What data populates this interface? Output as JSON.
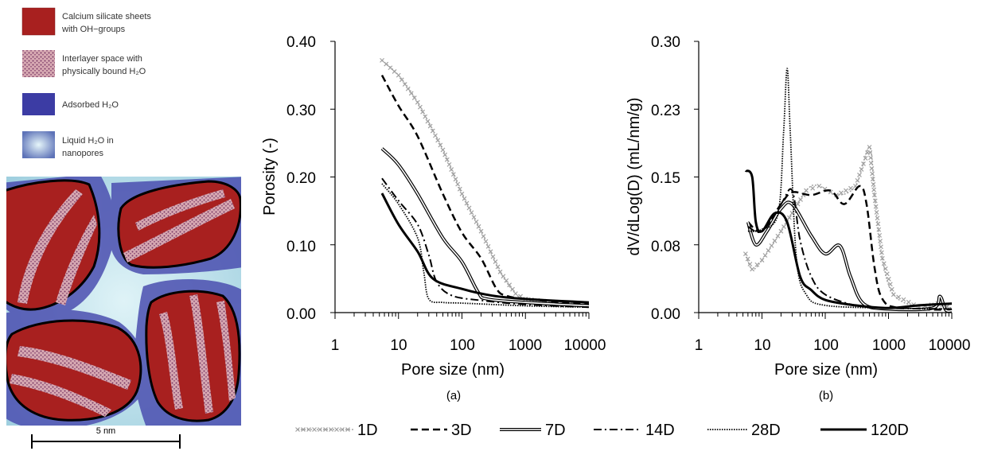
{
  "schematic": {
    "legend": [
      {
        "line1": "Calcium silicate sheets",
        "line2": "with OH−groups",
        "swatch": "sheet"
      },
      {
        "line1": "Interlayer space with",
        "line2": "physically bound H₂O",
        "swatch": "interlayer"
      },
      {
        "line1": "Adsorbed H₂O",
        "line2": "",
        "swatch": "adsorbed"
      },
      {
        "line1": "Liquid H₂O in",
        "line2": "nanopores",
        "swatch": "liquid"
      }
    ],
    "scale_label": "5 nm",
    "colors": {
      "sheet": "#a8201f",
      "interlayer": "#c9909a",
      "adsorbed": "#3c3ca4",
      "liquid": "#bfe4ee"
    }
  },
  "chart_data": [
    {
      "type": "line",
      "panel": "(a)",
      "xlabel": "Pore size (nm)",
      "ylabel": "Porosity (-)",
      "xscale": "log",
      "xlim": [
        1,
        10000
      ],
      "ylim": [
        0,
        0.4
      ],
      "x_ticks": [
        "1",
        "10",
        "100",
        "1000",
        "10000"
      ],
      "y_ticks": [
        "0.00",
        "0.10",
        "0.20",
        "0.30",
        "0.40"
      ],
      "series": [
        {
          "name": "1D",
          "values": [
            [
              5.5,
              0.372
            ],
            [
              10,
              0.35
            ],
            [
              20,
              0.31
            ],
            [
              50,
              0.24
            ],
            [
              100,
              0.175
            ],
            [
              200,
              0.12
            ],
            [
              400,
              0.06
            ],
            [
              700,
              0.028
            ],
            [
              1000,
              0.02
            ],
            [
              3000,
              0.015
            ],
            [
              10000,
              0.012
            ]
          ]
        },
        {
          "name": "3D",
          "values": [
            [
              5.5,
              0.35
            ],
            [
              10,
              0.305
            ],
            [
              20,
              0.26
            ],
            [
              50,
              0.175
            ],
            [
              100,
              0.118
            ],
            [
              200,
              0.08
            ],
            [
              350,
              0.035
            ],
            [
              500,
              0.025
            ],
            [
              1000,
              0.02
            ],
            [
              10000,
              0.012
            ]
          ]
        },
        {
          "name": "7D",
          "values": [
            [
              5.5,
              0.242
            ],
            [
              10,
              0.218
            ],
            [
              20,
              0.175
            ],
            [
              50,
              0.11
            ],
            [
              100,
              0.075
            ],
            [
              180,
              0.03
            ],
            [
              250,
              0.02
            ],
            [
              1000,
              0.015
            ],
            [
              10000,
              0.01
            ]
          ]
        },
        {
          "name": "14D",
          "values": [
            [
              5.5,
              0.198
            ],
            [
              10,
              0.165
            ],
            [
              20,
              0.13
            ],
            [
              30,
              0.085
            ],
            [
              40,
              0.045
            ],
            [
              70,
              0.025
            ],
            [
              200,
              0.018
            ],
            [
              1000,
              0.012
            ],
            [
              10000,
              0.008
            ]
          ]
        },
        {
          "name": "28D",
          "values": [
            [
              5.5,
              0.19
            ],
            [
              10,
              0.16
            ],
            [
              20,
              0.11
            ],
            [
              25,
              0.06
            ],
            [
              30,
              0.02
            ],
            [
              50,
              0.015
            ],
            [
              100,
              0.014
            ],
            [
              1000,
              0.01
            ],
            [
              10000,
              0.008
            ]
          ]
        },
        {
          "name": "120D",
          "values": [
            [
              5.5,
              0.176
            ],
            [
              10,
              0.13
            ],
            [
              20,
              0.09
            ],
            [
              35,
              0.05
            ],
            [
              100,
              0.035
            ],
            [
              300,
              0.025
            ],
            [
              1000,
              0.02
            ],
            [
              10000,
              0.015
            ]
          ]
        }
      ]
    },
    {
      "type": "line",
      "panel": "(b)",
      "xlabel": "Pore size (nm)",
      "ylabel": "dV/dLog(D) (mL/nm/g)",
      "xscale": "log",
      "xlim": [
        1,
        10000
      ],
      "ylim": [
        0,
        0.3
      ],
      "x_ticks": [
        "1",
        "10",
        "100",
        "1000",
        "10000"
      ],
      "y_ticks": [
        "0.00",
        "0.08",
        "0.15",
        "0.23",
        "0.30"
      ],
      "series": [
        {
          "name": "1D",
          "values": [
            [
              5.5,
              0.065
            ],
            [
              7,
              0.048
            ],
            [
              10,
              0.058
            ],
            [
              20,
              0.09
            ],
            [
              50,
              0.135
            ],
            [
              80,
              0.14
            ],
            [
              150,
              0.13
            ],
            [
              300,
              0.14
            ],
            [
              500,
              0.183
            ],
            [
              600,
              0.13
            ],
            [
              800,
              0.06
            ],
            [
              1200,
              0.02
            ],
            [
              3000,
              0.006
            ],
            [
              6000,
              0.01
            ],
            [
              10000,
              0.005
            ]
          ]
        },
        {
          "name": "3D",
          "values": [
            [
              6,
              0.1
            ],
            [
              10,
              0.09
            ],
            [
              20,
              0.12
            ],
            [
              30,
              0.133
            ],
            [
              60,
              0.13
            ],
            [
              120,
              0.135
            ],
            [
              200,
              0.12
            ],
            [
              350,
              0.14
            ],
            [
              450,
              0.12
            ],
            [
              600,
              0.05
            ],
            [
              800,
              0.015
            ],
            [
              1500,
              0.005
            ],
            [
              10000,
              0.003
            ]
          ]
        },
        {
          "name": "7D",
          "values": [
            [
              6,
              0.1
            ],
            [
              8,
              0.075
            ],
            [
              12,
              0.09
            ],
            [
              20,
              0.115
            ],
            [
              30,
              0.12
            ],
            [
              60,
              0.085
            ],
            [
              100,
              0.065
            ],
            [
              170,
              0.074
            ],
            [
              250,
              0.04
            ],
            [
              400,
              0.01
            ],
            [
              1000,
              0.004
            ],
            [
              5000,
              0.005
            ],
            [
              6500,
              0.018
            ],
            [
              8000,
              0.003
            ],
            [
              10000,
              0.002
            ]
          ]
        },
        {
          "name": "14D",
          "values": [
            [
              6,
              0.095
            ],
            [
              10,
              0.09
            ],
            [
              20,
              0.12
            ],
            [
              30,
              0.135
            ],
            [
              40,
              0.08
            ],
            [
              60,
              0.04
            ],
            [
              100,
              0.02
            ],
            [
              300,
              0.008
            ],
            [
              1000,
              0.005
            ],
            [
              10000,
              0.004
            ]
          ]
        },
        {
          "name": "28D",
          "values": [
            [
              6,
              0.09
            ],
            [
              10,
              0.092
            ],
            [
              18,
              0.11
            ],
            [
              22,
              0.2
            ],
            [
              25,
              0.27
            ],
            [
              28,
              0.2
            ],
            [
              35,
              0.06
            ],
            [
              50,
              0.02
            ],
            [
              100,
              0.008
            ],
            [
              1000,
              0.005
            ],
            [
              10000,
              0.004
            ]
          ]
        },
        {
          "name": "120D",
          "values": [
            [
              5.5,
              0.157
            ],
            [
              7,
              0.15
            ],
            [
              8,
              0.1
            ],
            [
              10,
              0.09
            ],
            [
              16,
              0.11
            ],
            [
              25,
              0.1
            ],
            [
              40,
              0.04
            ],
            [
              60,
              0.025
            ],
            [
              100,
              0.014
            ],
            [
              300,
              0.008
            ],
            [
              1000,
              0.005
            ],
            [
              3000,
              0.008
            ],
            [
              10000,
              0.01
            ]
          ]
        }
      ]
    }
  ],
  "legend": [
    {
      "name": "1D",
      "style": "cross"
    },
    {
      "name": "3D",
      "style": "dash"
    },
    {
      "name": "7D",
      "style": "double"
    },
    {
      "name": "14D",
      "style": "dashdot"
    },
    {
      "name": "28D",
      "style": "dotted"
    },
    {
      "name": "120D",
      "style": "thick"
    }
  ],
  "colors": {
    "grey": "#a0a0a0",
    "black": "#000000"
  }
}
